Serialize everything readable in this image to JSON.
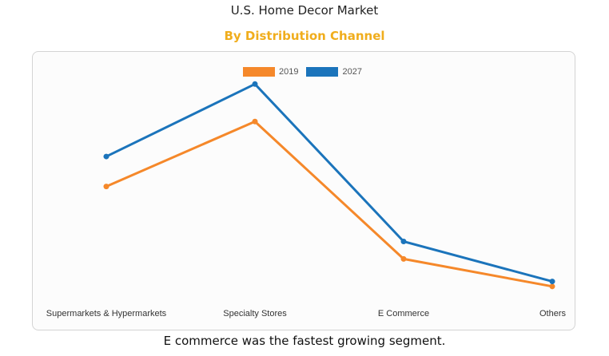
{
  "header": {
    "title": "U.S. Home Decor Market",
    "subtitle": "By Distribution Channel"
  },
  "footer": {
    "caption": "E commerce was the fastest growing segment."
  },
  "chart_data": {
    "type": "line",
    "title": "U.S. Home Decor Market",
    "subtitle": "By Distribution Channel",
    "xlabel": "",
    "ylabel": "",
    "categories": [
      "Supermarkets & Hypermarkets",
      "Specialty Stores",
      "E Commerce",
      "Others"
    ],
    "series": [
      {
        "name": "2019",
        "color": "#f5882a",
        "values": [
          49,
          75,
          20,
          9
        ]
      },
      {
        "name": "2027",
        "color": "#1b74bb",
        "values": [
          61,
          90,
          27,
          11
        ]
      }
    ],
    "ylim": [
      0,
      100
    ],
    "grid": false,
    "legend_position": "top-center",
    "show_y_axis": false
  }
}
